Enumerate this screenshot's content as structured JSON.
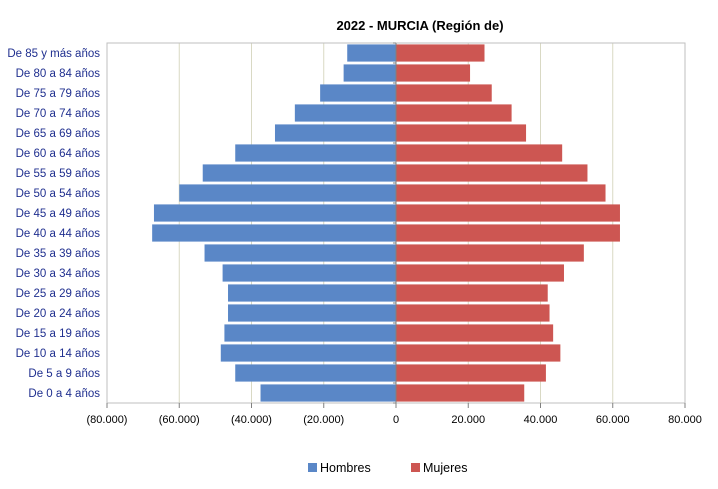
{
  "chart_data": {
    "type": "bar",
    "orientation": "horizontal",
    "title": "2022 - MURCIA (Región de)",
    "categories": [
      "De 0 a 4 años",
      "De 5 a 9 años",
      "De 10 a 14 años",
      "De 15 a 19 años",
      "De 20 a 24 años",
      "De 25 a 29 años",
      "De 30 a 34 años",
      "De 35 a 39 años",
      "De 40 a 44 años",
      "De 45 a 49 años",
      "De 50 a 54 años",
      "De 55 a 59 años",
      "De 60 a 64 años",
      "De 65 a 69 años",
      "De 70 a 74 años",
      "De 75 a 79 años",
      "De 80 a 84 años",
      "De 85 y más años"
    ],
    "series": [
      {
        "name": "Hombres",
        "color": "#5a87c7",
        "values": [
          -37500,
          -44500,
          -48500,
          -47500,
          -46500,
          -46500,
          -48000,
          -53000,
          -67500,
          -67000,
          -60000,
          -53500,
          -44500,
          -33500,
          -28000,
          -21000,
          -14500,
          -13500
        ]
      },
      {
        "name": "Mujeres",
        "color": "#cd5652",
        "values": [
          35500,
          41500,
          45500,
          43500,
          42500,
          42000,
          46500,
          52000,
          62000,
          62000,
          58000,
          53000,
          46000,
          36000,
          32000,
          26500,
          20500,
          24500
        ]
      }
    ],
    "xlim": [
      -80000,
      80000
    ],
    "x_ticks": [
      -80000,
      -60000,
      -40000,
      -20000,
      0,
      20000,
      40000,
      60000,
      80000
    ],
    "x_tick_labels": [
      "(80.000)",
      "(60.000)",
      "(40.000)",
      "(20.000)",
      "0",
      "20.000",
      "40.000",
      "60.000",
      "80.000"
    ],
    "xlabel": "",
    "ylabel": "",
    "grid": true,
    "legend_position": "bottom"
  }
}
